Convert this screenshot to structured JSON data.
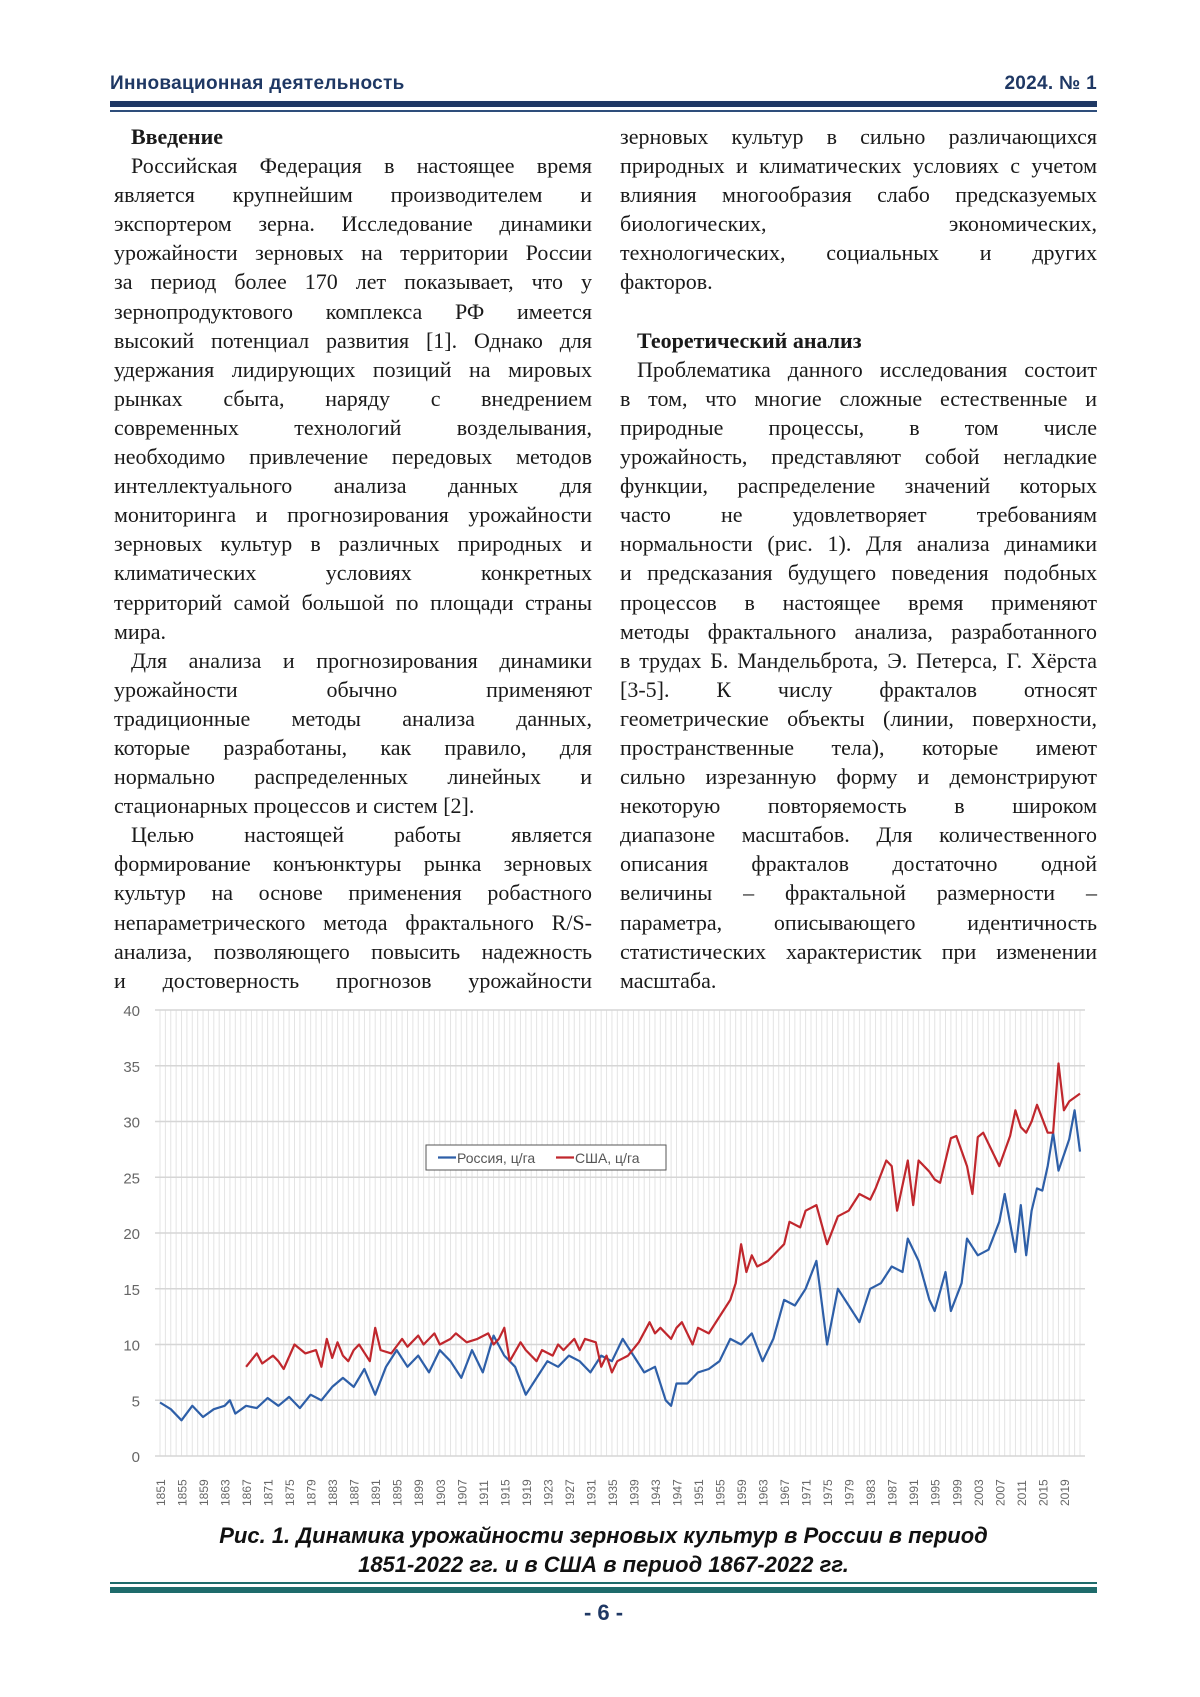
{
  "header": {
    "journal": "Инновационная деятельность",
    "issue": "2024. № 1"
  },
  "left_column": [
    {
      "type": "h",
      "text": "Введение"
    },
    {
      "type": "ind",
      "text": "Российская Федерация в настоящее время"
    },
    {
      "text": "является крупнейшим производителем и"
    },
    {
      "text": "экспортером зерна. Исследование динамики"
    },
    {
      "text": "урожайности зерновых на территории России"
    },
    {
      "text": "за период более 170 лет показывает, что у"
    },
    {
      "text": "зернопродуктового комплекса РФ имеется"
    },
    {
      "text": "высокий потенциал развития [1]. Однако для"
    },
    {
      "text": "удержания лидирующих позиций на мировых"
    },
    {
      "text": "рынках сбыта, наряду с внедрением"
    },
    {
      "text": "современных технологий возделывания,"
    },
    {
      "text": "необходимо привлечение передовых методов"
    },
    {
      "text": "интеллектуального анализа данных для"
    },
    {
      "text": "мониторинга и прогнозирования урожайности"
    },
    {
      "text": "зерновых культур в различных природных и"
    },
    {
      "text": "климатических условиях конкретных"
    },
    {
      "text": "территорий самой большой по площади страны"
    },
    {
      "type": "last",
      "text": "мира."
    },
    {
      "type": "ind",
      "text": "Для анализа и прогнозирования динамики"
    },
    {
      "text": "урожайности обычно применяют"
    },
    {
      "text": "традиционные методы анализа данных,"
    },
    {
      "text": "которые разработаны, как правило, для"
    },
    {
      "text": "нормально распределенных линейных и"
    },
    {
      "type": "last",
      "text": "стационарных процессов и систем [2]."
    },
    {
      "type": "ind",
      "text": "Целью настоящей работы является"
    },
    {
      "text": "формирование конъюнктуры рынка зерновых"
    },
    {
      "text": "культур на основе применения робастного"
    },
    {
      "text": "непараметрического метода фрактального R/S-"
    },
    {
      "text": "анализа, позволяющего повысить надежность"
    },
    {
      "text": "и достоверность прогнозов урожайности"
    }
  ],
  "right_column": [
    {
      "text": "зерновых культур в сильно различающихся"
    },
    {
      "text": "природных и климатических условиях с учетом"
    },
    {
      "text": "влияния многообразия слабо предсказуемых"
    },
    {
      "text": "биологических, экономических,"
    },
    {
      "text": "технологических, социальных и других"
    },
    {
      "type": "last",
      "text": "факторов."
    },
    {
      "type": "blank",
      "text": ""
    },
    {
      "type": "h",
      "text": "Теоретический анализ"
    },
    {
      "type": "ind",
      "text": "Проблематика данного исследования состоит"
    },
    {
      "text": "в том, что многие сложные естественные и"
    },
    {
      "text": "природные процессы, в том числе"
    },
    {
      "text": "урожайность, представляют собой негладкие"
    },
    {
      "text": "функции, распределение значений которых"
    },
    {
      "text": "часто не удовлетворяет требованиям"
    },
    {
      "text": "нормальности (рис. 1). Для анализа динамики"
    },
    {
      "text": "и предсказания будущего поведения подобных"
    },
    {
      "text": "процессов в настоящее время применяют"
    },
    {
      "text": "методы фрактального анализа, разработанного"
    },
    {
      "text": "в трудах Б. Мандельброта, Э. Петерса, Г. Хёрста"
    },
    {
      "text": "[3-5]. К числу фракталов относят"
    },
    {
      "text": "геометрические объекты (линии, поверхности,"
    },
    {
      "text": "пространственные тела), которые имеют"
    },
    {
      "text": "сильно изрезанную форму и демонстрируют"
    },
    {
      "text": "некоторую повторяемость в широком"
    },
    {
      "text": "диапазоне масштабов. Для количественного"
    },
    {
      "text": "описания фракталов достаточно одной"
    },
    {
      "text": "величины – фрактальной размерности –"
    },
    {
      "text": "параметра, описывающего идентичность"
    },
    {
      "text": "статистических характеристик при изменении"
    },
    {
      "type": "last",
      "text": "масштаба."
    }
  ],
  "chart_data": {
    "type": "line",
    "title": "",
    "xlabel": "",
    "ylabel": "",
    "xlim": [
      1851,
      2022
    ],
    "ylim": [
      0,
      40
    ],
    "y_ticks": [
      0,
      5,
      10,
      15,
      20,
      25,
      30,
      35,
      40
    ],
    "x_ticks": [
      1851,
      1855,
      1859,
      1863,
      1867,
      1871,
      1875,
      1879,
      1883,
      1887,
      1891,
      1895,
      1899,
      1903,
      1907,
      1911,
      1915,
      1919,
      1923,
      1927,
      1931,
      1935,
      1939,
      1943,
      1947,
      1951,
      1955,
      1959,
      1963,
      1967,
      1971,
      1975,
      1979,
      1983,
      1987,
      1991,
      1995,
      1999,
      2003,
      2007,
      2011,
      2015,
      2019
    ],
    "grid": true,
    "legend": "top-center",
    "series": [
      {
        "name": "Россия, ц/га",
        "color": "#2e5fa8",
        "points": [
          [
            1851,
            4.8
          ],
          [
            1853,
            4.2
          ],
          [
            1855,
            3.2
          ],
          [
            1857,
            4.5
          ],
          [
            1859,
            3.5
          ],
          [
            1861,
            4.2
          ],
          [
            1863,
            4.5
          ],
          [
            1864,
            5.0
          ],
          [
            1865,
            3.8
          ],
          [
            1867,
            4.5
          ],
          [
            1869,
            4.3
          ],
          [
            1871,
            5.2
          ],
          [
            1873,
            4.5
          ],
          [
            1875,
            5.3
          ],
          [
            1877,
            4.3
          ],
          [
            1879,
            5.5
          ],
          [
            1881,
            5.0
          ],
          [
            1883,
            6.2
          ],
          [
            1885,
            7.0
          ],
          [
            1887,
            6.2
          ],
          [
            1889,
            7.8
          ],
          [
            1891,
            5.5
          ],
          [
            1893,
            8.0
          ],
          [
            1895,
            9.5
          ],
          [
            1897,
            8.0
          ],
          [
            1899,
            9.0
          ],
          [
            1901,
            7.5
          ],
          [
            1903,
            9.5
          ],
          [
            1905,
            8.5
          ],
          [
            1907,
            7.0
          ],
          [
            1909,
            9.5
          ],
          [
            1911,
            7.5
          ],
          [
            1913,
            10.8
          ],
          [
            1915,
            9.0
          ],
          [
            1917,
            8.0
          ],
          [
            1919,
            5.5
          ],
          [
            1921,
            7.0
          ],
          [
            1923,
            8.5
          ],
          [
            1925,
            8.0
          ],
          [
            1927,
            9.0
          ],
          [
            1929,
            8.5
          ],
          [
            1931,
            7.5
          ],
          [
            1933,
            9.0
          ],
          [
            1935,
            8.5
          ],
          [
            1937,
            10.5
          ],
          [
            1939,
            9.0
          ],
          [
            1941,
            7.5
          ],
          [
            1943,
            8.0
          ],
          [
            1945,
            5.0
          ],
          [
            1946,
            4.5
          ],
          [
            1947,
            6.5
          ],
          [
            1949,
            6.5
          ],
          [
            1951,
            7.5
          ],
          [
            1953,
            7.8
          ],
          [
            1955,
            8.5
          ],
          [
            1957,
            10.5
          ],
          [
            1959,
            10.0
          ],
          [
            1961,
            11.0
          ],
          [
            1963,
            8.5
          ],
          [
            1965,
            10.5
          ],
          [
            1967,
            14.0
          ],
          [
            1969,
            13.5
          ],
          [
            1971,
            15.0
          ],
          [
            1973,
            17.5
          ],
          [
            1975,
            10.0
          ],
          [
            1977,
            15.0
          ],
          [
            1979,
            13.5
          ],
          [
            1981,
            12.0
          ],
          [
            1983,
            15.0
          ],
          [
            1985,
            15.5
          ],
          [
            1987,
            17.0
          ],
          [
            1989,
            16.5
          ],
          [
            1990,
            19.5
          ],
          [
            1992,
            17.5
          ],
          [
            1994,
            14.0
          ],
          [
            1995,
            13.0
          ],
          [
            1997,
            16.5
          ],
          [
            1998,
            13.0
          ],
          [
            2000,
            15.5
          ],
          [
            2001,
            19.5
          ],
          [
            2003,
            18.0
          ],
          [
            2005,
            18.5
          ],
          [
            2007,
            21.0
          ],
          [
            2008,
            23.5
          ],
          [
            2010,
            18.3
          ],
          [
            2011,
            22.5
          ],
          [
            2012,
            18.0
          ],
          [
            2013,
            22.0
          ],
          [
            2014,
            24.0
          ],
          [
            2015,
            23.8
          ],
          [
            2016,
            26.0
          ],
          [
            2017,
            29.0
          ],
          [
            2018,
            25.6
          ],
          [
            2019,
            27.0
          ],
          [
            2020,
            28.4
          ],
          [
            2021,
            31.0
          ],
          [
            2022,
            27.3
          ]
        ]
      },
      {
        "name": "США, ц/га",
        "color": "#c0272d",
        "points": [
          [
            1867,
            8.0
          ],
          [
            1869,
            9.2
          ],
          [
            1870,
            8.3
          ],
          [
            1872,
            9.0
          ],
          [
            1873,
            8.5
          ],
          [
            1874,
            7.8
          ],
          [
            1876,
            10.0
          ],
          [
            1878,
            9.2
          ],
          [
            1880,
            9.5
          ],
          [
            1881,
            8.0
          ],
          [
            1882,
            10.5
          ],
          [
            1883,
            8.8
          ],
          [
            1884,
            10.2
          ],
          [
            1885,
            9.0
          ],
          [
            1886,
            8.5
          ],
          [
            1887,
            9.5
          ],
          [
            1888,
            10.0
          ],
          [
            1890,
            8.5
          ],
          [
            1891,
            11.5
          ],
          [
            1892,
            9.5
          ],
          [
            1894,
            9.2
          ],
          [
            1896,
            10.5
          ],
          [
            1897,
            9.8
          ],
          [
            1899,
            10.8
          ],
          [
            1900,
            10.0
          ],
          [
            1902,
            11.0
          ],
          [
            1903,
            10.0
          ],
          [
            1905,
            10.5
          ],
          [
            1906,
            11.0
          ],
          [
            1908,
            10.2
          ],
          [
            1910,
            10.5
          ],
          [
            1912,
            11.0
          ],
          [
            1913,
            10.0
          ],
          [
            1914,
            10.5
          ],
          [
            1915,
            11.5
          ],
          [
            1916,
            8.5
          ],
          [
            1918,
            10.2
          ],
          [
            1919,
            9.5
          ],
          [
            1921,
            8.5
          ],
          [
            1922,
            9.5
          ],
          [
            1924,
            9.0
          ],
          [
            1925,
            10.0
          ],
          [
            1926,
            9.5
          ],
          [
            1928,
            10.5
          ],
          [
            1929,
            9.5
          ],
          [
            1930,
            10.5
          ],
          [
            1932,
            10.2
          ],
          [
            1933,
            8.0
          ],
          [
            1934,
            9.0
          ],
          [
            1935,
            7.5
          ],
          [
            1936,
            8.5
          ],
          [
            1938,
            9.0
          ],
          [
            1940,
            10.2
          ],
          [
            1942,
            12.0
          ],
          [
            1943,
            11.0
          ],
          [
            1944,
            11.5
          ],
          [
            1946,
            10.5
          ],
          [
            1947,
            11.5
          ],
          [
            1948,
            12.0
          ],
          [
            1950,
            10.0
          ],
          [
            1951,
            11.5
          ],
          [
            1953,
            11.0
          ],
          [
            1955,
            12.5
          ],
          [
            1957,
            14.0
          ],
          [
            1958,
            15.5
          ],
          [
            1959,
            19.0
          ],
          [
            1960,
            16.5
          ],
          [
            1961,
            18.0
          ],
          [
            1962,
            17.0
          ],
          [
            1964,
            17.5
          ],
          [
            1966,
            18.5
          ],
          [
            1967,
            19.0
          ],
          [
            1968,
            21.0
          ],
          [
            1970,
            20.5
          ],
          [
            1971,
            22.0
          ],
          [
            1973,
            22.5
          ],
          [
            1975,
            19.0
          ],
          [
            1977,
            21.5
          ],
          [
            1979,
            22.0
          ],
          [
            1981,
            23.5
          ],
          [
            1983,
            23.0
          ],
          [
            1984,
            24.0
          ],
          [
            1986,
            26.5
          ],
          [
            1987,
            26.0
          ],
          [
            1988,
            22.0
          ],
          [
            1990,
            26.5
          ],
          [
            1991,
            22.5
          ],
          [
            1992,
            26.5
          ],
          [
            1994,
            25.5
          ],
          [
            1995,
            24.8
          ],
          [
            1996,
            24.5
          ],
          [
            1998,
            28.5
          ],
          [
            1999,
            28.7
          ],
          [
            2001,
            26.0
          ],
          [
            2002,
            23.5
          ],
          [
            2003,
            28.6
          ],
          [
            2004,
            29.0
          ],
          [
            2006,
            27.0
          ],
          [
            2007,
            26.0
          ],
          [
            2009,
            28.7
          ],
          [
            2010,
            31.0
          ],
          [
            2011,
            29.5
          ],
          [
            2012,
            29.0
          ],
          [
            2013,
            30.0
          ],
          [
            2014,
            31.5
          ],
          [
            2016,
            29.0
          ],
          [
            2017,
            29.0
          ],
          [
            2018,
            35.2
          ],
          [
            2019,
            31.0
          ],
          [
            2020,
            31.8
          ],
          [
            2022,
            32.5
          ]
        ]
      }
    ]
  },
  "caption": {
    "line1": "Рис. 1. Динамика урожайности зерновых культур в России в период",
    "line2": "1851-2022 гг. и в США в период 1867-2022 гг."
  },
  "footer": {
    "page_number": "- 6 -"
  }
}
